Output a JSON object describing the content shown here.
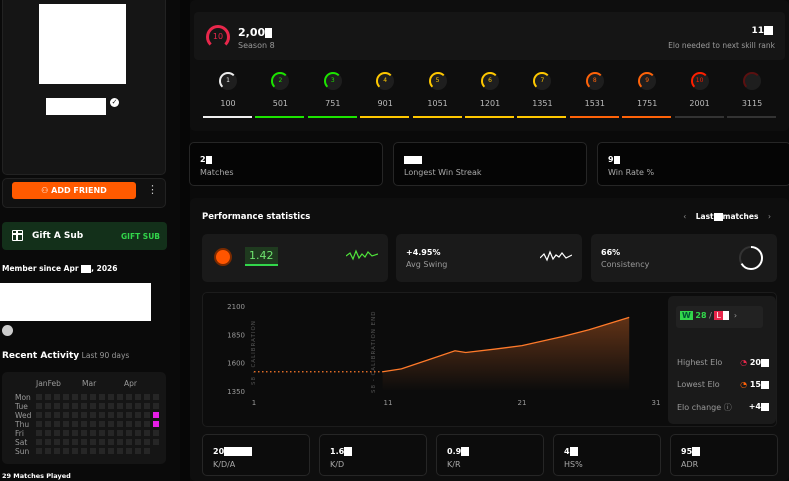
{
  "profile": {
    "verified_icon": "verified-badge-icon",
    "add_friend": "ADD FRIEND",
    "more_icon": "kebab-icon"
  },
  "gift": {
    "title": "Gift A Sub",
    "action": "GIFT SUB"
  },
  "member_since": {
    "prefix": "Member since Apr",
    "year": ", 2026"
  },
  "recent": {
    "title": "Recent Activity",
    "range": "Last 90 days",
    "months": [
      "Jan",
      "Feb",
      "Mar",
      "Apr"
    ],
    "days": [
      "Mon",
      "Tue",
      "Wed",
      "Thu",
      "Fri",
      "Sat",
      "Sun"
    ],
    "highlight_color": "#e81ee8",
    "matches_played": "29 Matches Played"
  },
  "elo": {
    "level": "10",
    "value_visible": "2,00",
    "season": "Season 8",
    "needed_visible": "11",
    "needed_label": "Elo needed to next skill rank"
  },
  "levels": [
    {
      "n": "1",
      "elo": "100",
      "color": "#eeeeee"
    },
    {
      "n": "2",
      "elo": "501",
      "color": "#1ce400"
    },
    {
      "n": "3",
      "elo": "751",
      "color": "#1ce400"
    },
    {
      "n": "4",
      "elo": "901",
      "color": "#ffc800"
    },
    {
      "n": "5",
      "elo": "1051",
      "color": "#ffc800"
    },
    {
      "n": "6",
      "elo": "1201",
      "color": "#ffc800"
    },
    {
      "n": "7",
      "elo": "1351",
      "color": "#ffc800"
    },
    {
      "n": "8",
      "elo": "1531",
      "color": "#ff6309"
    },
    {
      "n": "9",
      "elo": "1751",
      "color": "#ff6309"
    },
    {
      "n": "10",
      "elo": "2001",
      "color": "#fe1f00"
    },
    {
      "n": "",
      "elo": "3115",
      "color": "#5a1010"
    }
  ],
  "summary": [
    {
      "value": "2",
      "label": "Matches"
    },
    {
      "value": "",
      "label": "Longest Win Streak"
    },
    {
      "value": "9",
      "label": "Win Rate %"
    }
  ],
  "performance": {
    "title": "Performance statistics",
    "last": "Last",
    "matches": "matches",
    "rating": "1.42",
    "swing": "+4.95%",
    "swing_label": "Avg Swing",
    "consistency": "66%",
    "consistency_label": "Consistency",
    "consistency_fraction": 0.66
  },
  "record": {
    "w": "W",
    "wins": "28",
    "sep": "/",
    "l": "L"
  },
  "elo_stats": [
    {
      "label": "Highest Elo",
      "value": "20"
    },
    {
      "label": "Lowest Elo",
      "value": "15"
    },
    {
      "label": "Elo change",
      "value": "+4"
    }
  ],
  "chart_data": {
    "type": "area",
    "x_ticks": [
      "1",
      "11",
      "21",
      "31"
    ],
    "y_ticks": [
      "2100",
      "1850",
      "1600",
      "1350"
    ],
    "ylim": [
      1350,
      2100
    ],
    "xlim": [
      1,
      31
    ],
    "annotations": [
      "S8 - CALIBRATION",
      "S8 - CALIBRATION END"
    ],
    "calibration": {
      "x": [
        1,
        10.6
      ],
      "y": [
        1520,
        1520
      ]
    },
    "series": [
      {
        "x": [
          10.6,
          12,
          14,
          16,
          16.8,
          19,
          21,
          24,
          26,
          29
        ],
        "y": [
          1520,
          1545,
          1625,
          1705,
          1690,
          1720,
          1750,
          1830,
          1890,
          2000
        ]
      }
    ],
    "color": "#ff7a2a"
  },
  "bottom_stats": [
    {
      "value": "20",
      "label": "K/D/A"
    },
    {
      "value": "1.6",
      "label": "K/D"
    },
    {
      "value": "0.9",
      "label": "K/R"
    },
    {
      "value": "4",
      "label": "HS%"
    },
    {
      "value": "95",
      "label": "ADR"
    }
  ]
}
